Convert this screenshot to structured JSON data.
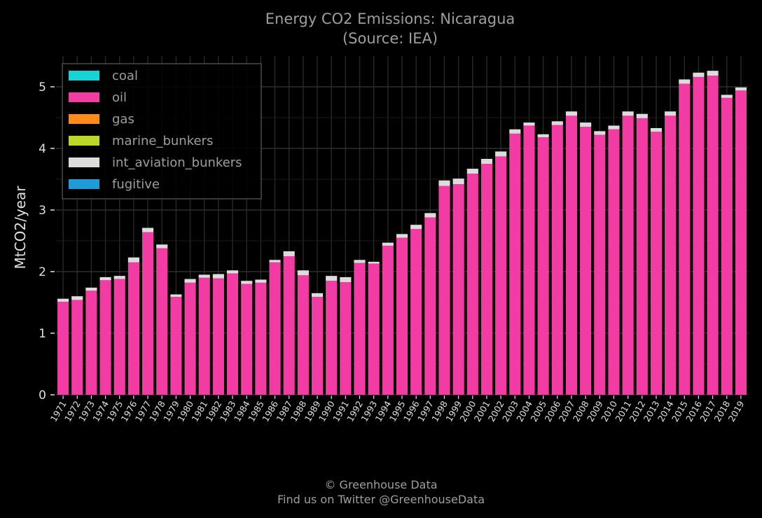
{
  "chart_data": {
    "type": "bar",
    "stacked": true,
    "title": "Energy CO2 Emissions: Nicaragua",
    "subtitle": "(Source: IEA)",
    "xlabel": "",
    "ylabel": "MtCO2/year",
    "ylim": [
      0,
      5.5
    ],
    "yticks": [
      0,
      1,
      2,
      3,
      4,
      5
    ],
    "grid": true,
    "legend_position": "top-left",
    "categories": [
      "1971",
      "1972",
      "1973",
      "1974",
      "1975",
      "1976",
      "1977",
      "1978",
      "1979",
      "1980",
      "1981",
      "1982",
      "1983",
      "1984",
      "1985",
      "1986",
      "1987",
      "1988",
      "1989",
      "1990",
      "1991",
      "1992",
      "1993",
      "1994",
      "1995",
      "1996",
      "1997",
      "1998",
      "1999",
      "2000",
      "2001",
      "2002",
      "2003",
      "2004",
      "2005",
      "2006",
      "2007",
      "2008",
      "2009",
      "2010",
      "2011",
      "2012",
      "2013",
      "2014",
      "2015",
      "2016",
      "2017",
      "2018",
      "2019"
    ],
    "series": [
      {
        "name": "coal",
        "color": "#17d4d4",
        "values": [
          0,
          0,
          0,
          0,
          0,
          0,
          0,
          0,
          0,
          0,
          0,
          0,
          0,
          0,
          0,
          0,
          0,
          0,
          0,
          0,
          0,
          0,
          0,
          0,
          0,
          0,
          0,
          0,
          0,
          0,
          0,
          0,
          0,
          0,
          0,
          0,
          0,
          0,
          0,
          0,
          0,
          0,
          0,
          0,
          0,
          0,
          0,
          0,
          0
        ]
      },
      {
        "name": "oil",
        "color": "#f23ba3",
        "values": [
          1.51,
          1.54,
          1.69,
          1.86,
          1.88,
          2.15,
          2.64,
          2.38,
          1.59,
          1.82,
          1.9,
          1.89,
          1.97,
          1.8,
          1.82,
          2.15,
          2.25,
          1.94,
          1.59,
          1.85,
          1.83,
          2.14,
          2.13,
          2.42,
          2.55,
          2.69,
          2.88,
          3.39,
          3.42,
          3.59,
          3.75,
          3.87,
          4.24,
          4.37,
          4.18,
          4.38,
          4.53,
          4.35,
          4.22,
          4.31,
          4.53,
          4.49,
          4.27,
          4.53,
          5.05,
          5.16,
          5.18,
          4.82,
          4.94
        ]
      },
      {
        "name": "gas",
        "color": "#ff8c1a",
        "values": [
          0,
          0,
          0,
          0,
          0,
          0,
          0,
          0,
          0,
          0,
          0,
          0,
          0,
          0,
          0,
          0,
          0,
          0,
          0,
          0,
          0,
          0,
          0,
          0,
          0,
          0,
          0,
          0,
          0,
          0,
          0,
          0,
          0,
          0,
          0,
          0,
          0,
          0,
          0,
          0,
          0,
          0,
          0,
          0,
          0,
          0,
          0,
          0,
          0
        ]
      },
      {
        "name": "marine_bunkers",
        "color": "#bcd62a",
        "values": [
          0,
          0,
          0,
          0,
          0,
          0,
          0,
          0,
          0,
          0,
          0,
          0,
          0,
          0,
          0,
          0,
          0,
          0,
          0,
          0,
          0,
          0,
          0,
          0,
          0,
          0,
          0,
          0,
          0,
          0,
          0,
          0,
          0,
          0,
          0,
          0,
          0,
          0,
          0,
          0,
          0,
          0,
          0,
          0,
          0,
          0,
          0,
          0,
          0
        ]
      },
      {
        "name": "int_aviation_bunkers",
        "color": "#dcdcdc",
        "values": [
          0.05,
          0.06,
          0.05,
          0.05,
          0.05,
          0.08,
          0.07,
          0.06,
          0.04,
          0.06,
          0.05,
          0.07,
          0.05,
          0.05,
          0.05,
          0.04,
          0.08,
          0.08,
          0.06,
          0.08,
          0.08,
          0.05,
          0.03,
          0.05,
          0.06,
          0.07,
          0.07,
          0.09,
          0.09,
          0.08,
          0.08,
          0.08,
          0.07,
          0.05,
          0.05,
          0.06,
          0.07,
          0.07,
          0.06,
          0.06,
          0.07,
          0.07,
          0.06,
          0.07,
          0.07,
          0.07,
          0.08,
          0.05,
          0.05
        ]
      },
      {
        "name": "fugitive",
        "color": "#1f9bd6",
        "values": [
          0,
          0,
          0,
          0,
          0,
          0,
          0,
          0,
          0,
          0,
          0,
          0,
          0,
          0,
          0,
          0,
          0,
          0,
          0,
          0,
          0,
          0,
          0,
          0,
          0,
          0,
          0,
          0,
          0,
          0,
          0,
          0,
          0,
          0,
          0,
          0,
          0,
          0,
          0,
          0,
          0,
          0,
          0,
          0,
          0,
          0,
          0,
          0,
          0
        ]
      }
    ]
  },
  "footer": {
    "line1": "© Greenhouse Data",
    "line2": "Find us on Twitter @GreenhouseData"
  }
}
